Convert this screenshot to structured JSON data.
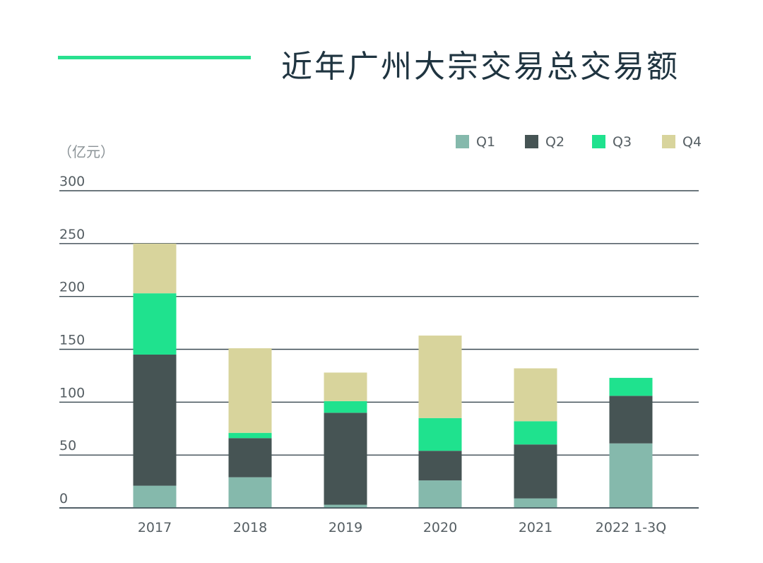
{
  "title": "近年广州大宗交易总交易额",
  "colors": {
    "accent": "#29e08f",
    "title": "#1f3440",
    "Q1": "#85b9ac",
    "Q2": "#465454",
    "Q3": "#1fe28e",
    "Q4": "#d8d49c",
    "grid": "#3b4a52"
  },
  "chart_data": {
    "type": "bar",
    "stacked": true,
    "title": "近年广州大宗交易总交易额",
    "ylabel": "（亿元）",
    "xlabel": "",
    "ylim": [
      0,
      300
    ],
    "yticks": [
      0,
      50,
      100,
      150,
      200,
      250,
      300
    ],
    "legend_position": "top-right",
    "categories": [
      "2017",
      "2018",
      "2019",
      "2020",
      "2021",
      "2022 1-3Q"
    ],
    "series": [
      {
        "name": "Q1",
        "values": [
          21,
          29,
          3,
          26,
          9,
          61
        ]
      },
      {
        "name": "Q2",
        "values": [
          124,
          37,
          87,
          28,
          51,
          45
        ]
      },
      {
        "name": "Q3",
        "values": [
          58,
          5,
          11,
          31,
          22,
          17
        ]
      },
      {
        "name": "Q4",
        "values": [
          47,
          80,
          27,
          78,
          50,
          0
        ]
      }
    ]
  }
}
